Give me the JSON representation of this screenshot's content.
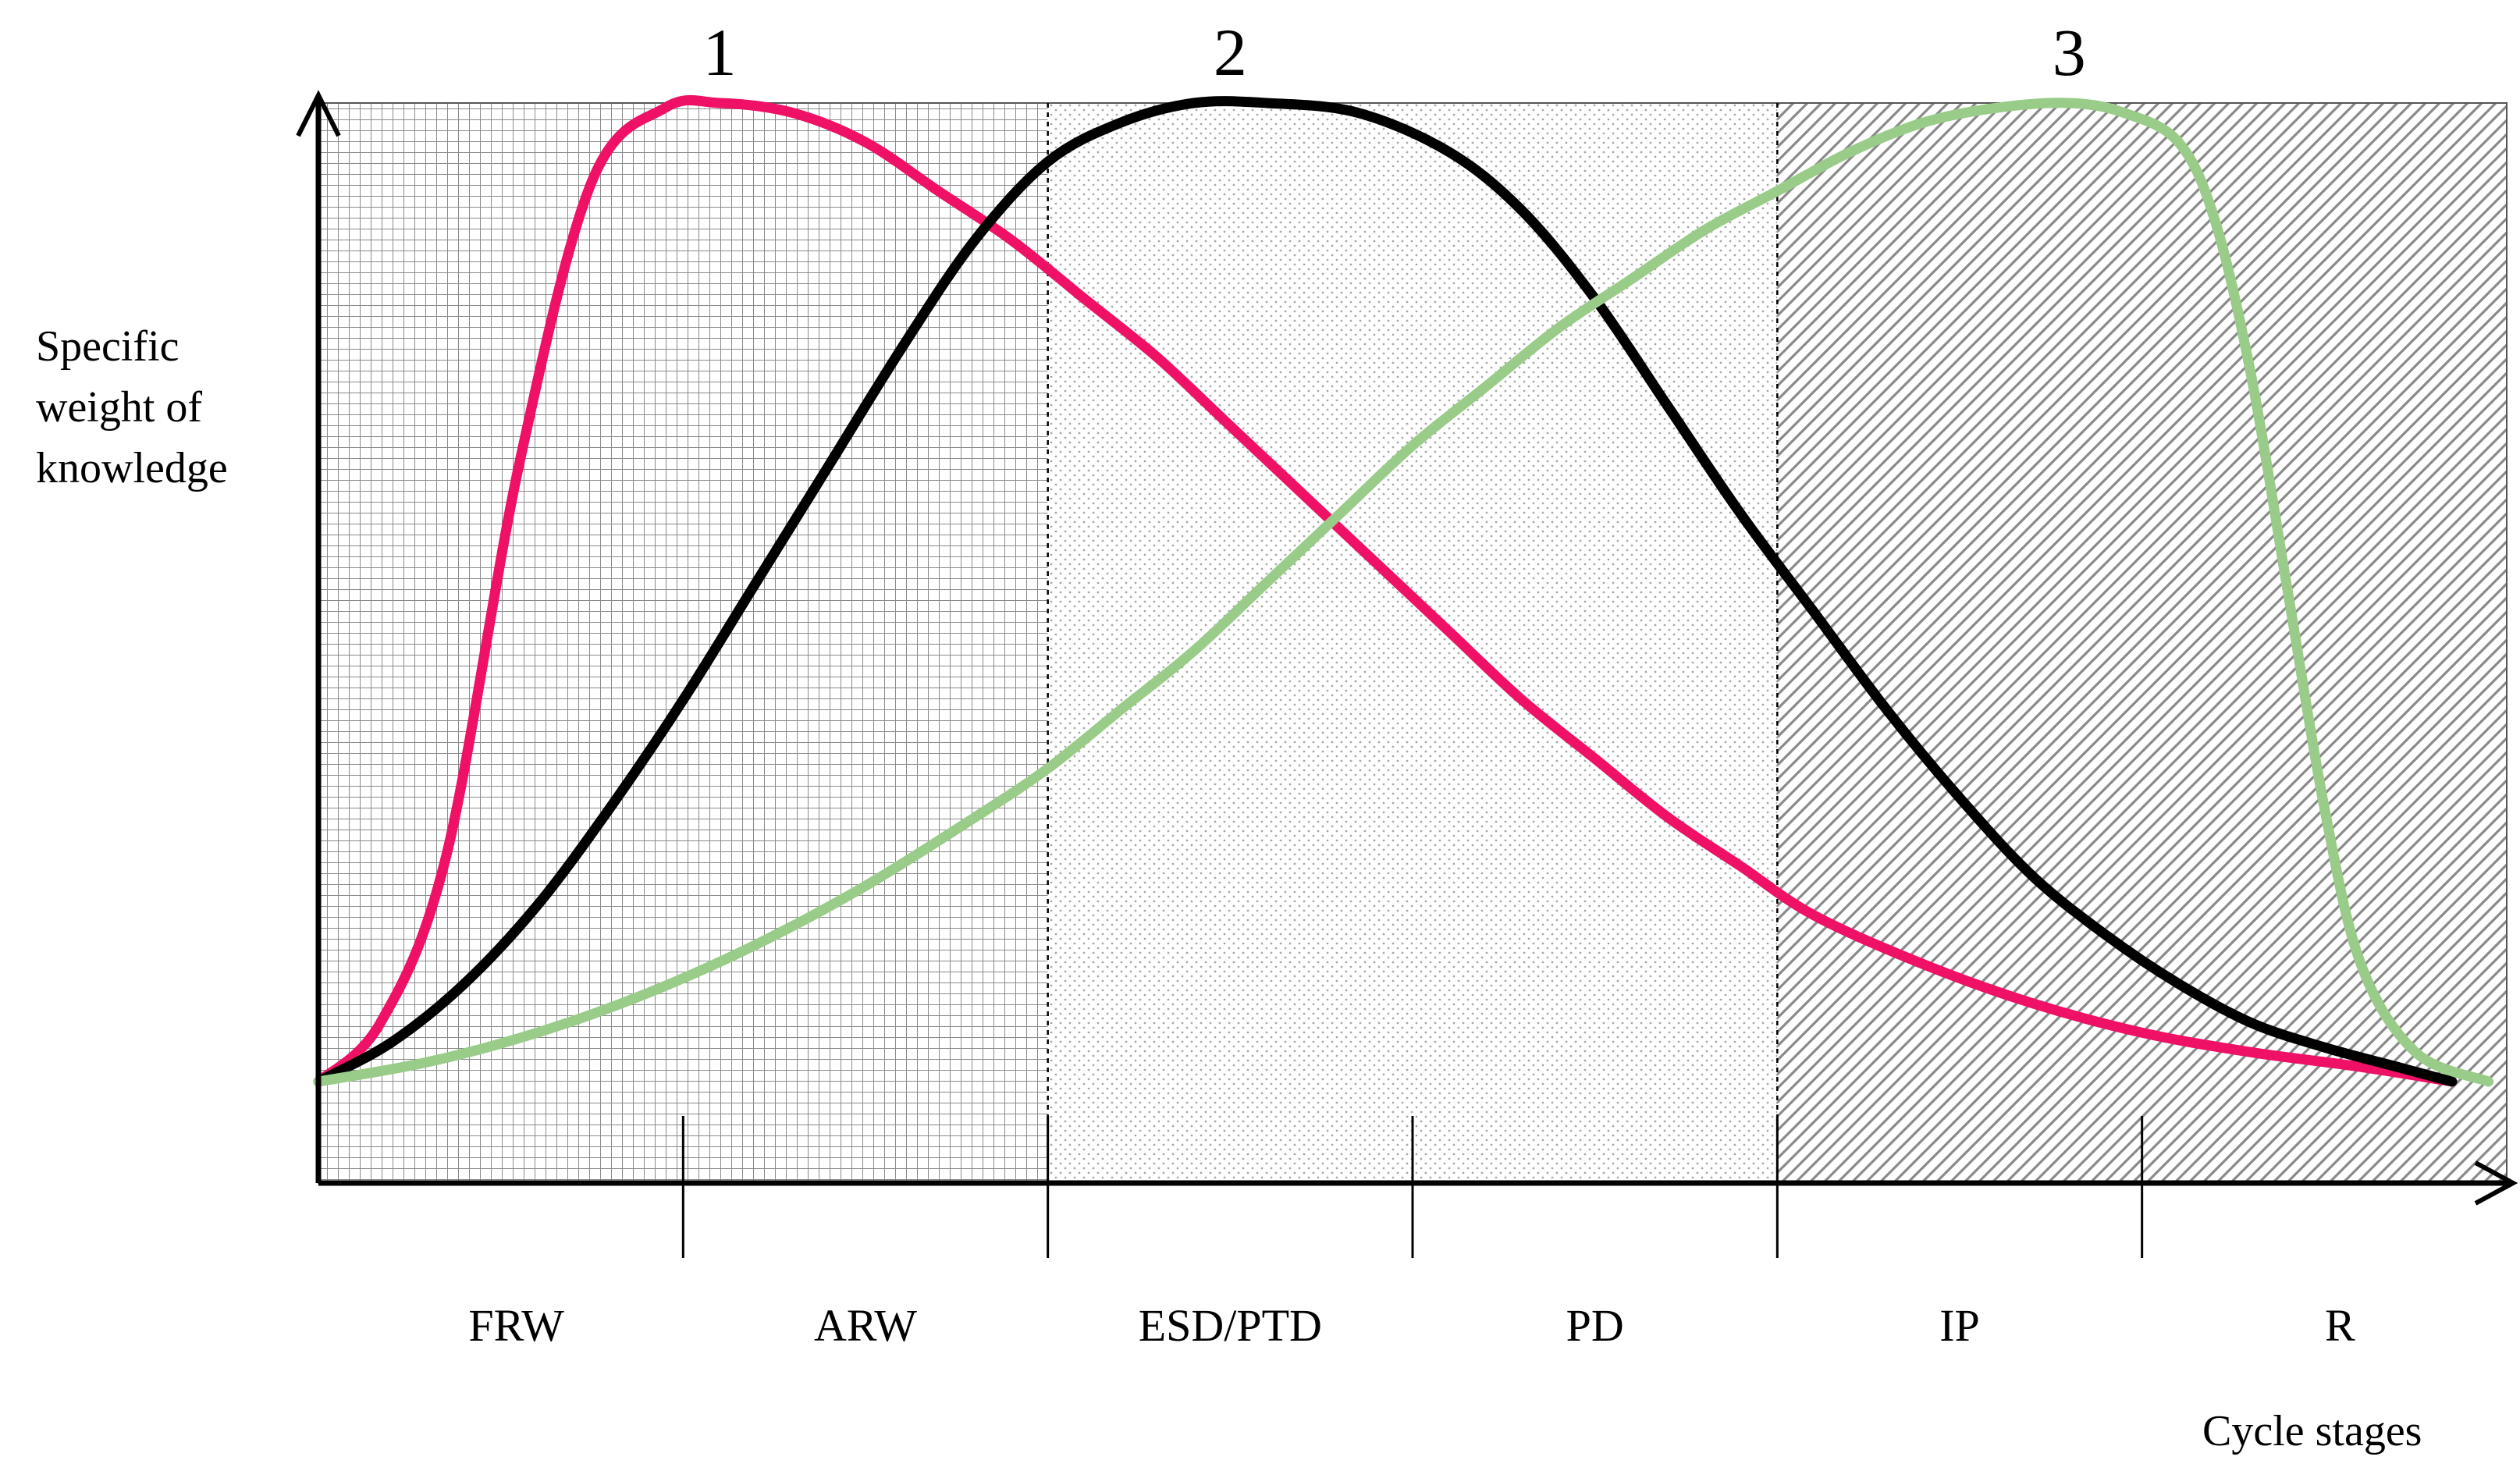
{
  "y_axis_label": [
    "Specific",
    "weight of",
    "knowledge"
  ],
  "x_axis_label": "Cycle stages",
  "colors": {
    "curve_1": "#ee1166",
    "curve_2": "#000000",
    "curve_3": "#99cc88",
    "pattern_lines": "#8a8a8a"
  },
  "chart_data": {
    "type": "line",
    "title": "",
    "xlabel": "Cycle stages",
    "ylabel": "Specific weight of knowledge",
    "categories": [
      "FRW",
      "ARW",
      "ESD/PTD",
      "PD",
      "IP",
      "R"
    ],
    "xlim": [
      0,
      6
    ],
    "ylim": [
      0,
      1
    ],
    "grid": false,
    "regions": [
      {
        "from": 0,
        "to": 2,
        "fill": "grid-hatch"
      },
      {
        "from": 2,
        "to": 4,
        "fill": "dots"
      },
      {
        "from": 4,
        "to": 6,
        "fill": "diagonal-hatch"
      }
    ],
    "series": [
      {
        "name": "1",
        "color": "#ee1166",
        "x": [
          0,
          0.17,
          0.35,
          0.55,
          0.75,
          0.95,
          1.1,
          1.3,
          1.5,
          1.7,
          1.9,
          2.1,
          2.3,
          2.5,
          2.7,
          2.9,
          3.1,
          3.3,
          3.5,
          3.7,
          3.9,
          4.1,
          4.4,
          4.7,
          5.0,
          5.3,
          5.6,
          5.85
        ],
        "y": [
          0.0,
          0.06,
          0.23,
          0.63,
          0.92,
          0.995,
          1.0,
          0.99,
          0.96,
          0.91,
          0.86,
          0.8,
          0.74,
          0.67,
          0.6,
          0.53,
          0.46,
          0.39,
          0.33,
          0.27,
          0.22,
          0.17,
          0.12,
          0.08,
          0.05,
          0.03,
          0.015,
          0.0
        ]
      },
      {
        "name": "2",
        "color": "#000000",
        "x": [
          0,
          0.2,
          0.4,
          0.6,
          0.8,
          1.0,
          1.2,
          1.4,
          1.6,
          1.8,
          2.0,
          2.2,
          2.4,
          2.6,
          2.85,
          3.1,
          3.3,
          3.5,
          3.7,
          3.9,
          4.1,
          4.3,
          4.5,
          4.7,
          4.9,
          5.1,
          5.3,
          5.5,
          5.7,
          5.85
        ],
        "y": [
          0.0,
          0.04,
          0.1,
          0.18,
          0.28,
          0.39,
          0.51,
          0.63,
          0.75,
          0.86,
          0.94,
          0.98,
          1.0,
          1.0,
          0.99,
          0.95,
          0.89,
          0.8,
          0.69,
          0.58,
          0.48,
          0.38,
          0.29,
          0.21,
          0.15,
          0.1,
          0.06,
          0.035,
          0.015,
          0.0
        ]
      },
      {
        "name": "3",
        "color": "#99cc88",
        "x": [
          0,
          0.3,
          0.6,
          0.9,
          1.2,
          1.5,
          1.8,
          2.0,
          2.2,
          2.4,
          2.6,
          2.8,
          3.0,
          3.2,
          3.4,
          3.6,
          3.8,
          4.0,
          4.2,
          4.4,
          4.6,
          4.8,
          4.95,
          5.1,
          5.2,
          5.3,
          5.4,
          5.5,
          5.6,
          5.75,
          5.95
        ],
        "y": [
          0.0,
          0.02,
          0.05,
          0.09,
          0.14,
          0.2,
          0.27,
          0.32,
          0.38,
          0.44,
          0.51,
          0.58,
          0.65,
          0.71,
          0.77,
          0.82,
          0.87,
          0.91,
          0.95,
          0.98,
          0.995,
          1.0,
          0.99,
          0.96,
          0.88,
          0.72,
          0.5,
          0.28,
          0.12,
          0.03,
          0.0
        ]
      }
    ]
  }
}
